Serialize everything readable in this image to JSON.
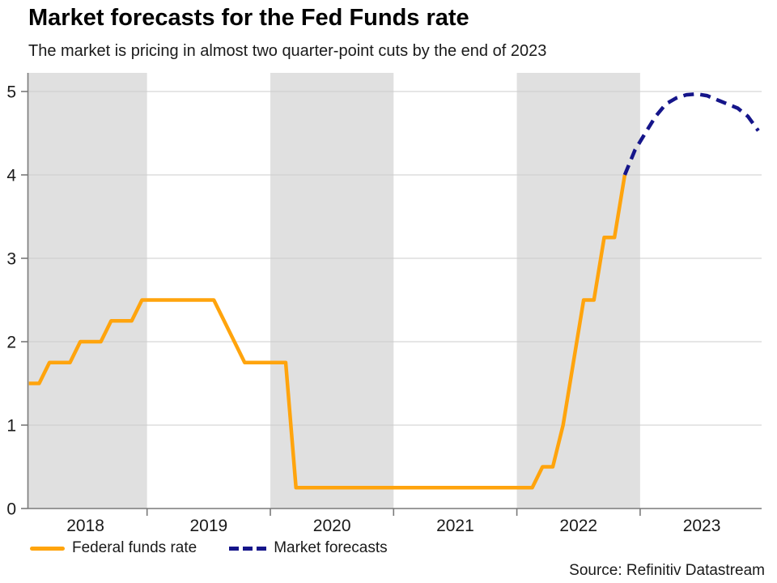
{
  "header": {
    "title": "Market forecasts for the Fed Funds rate",
    "subtitle": "The market is pricing in almost two quarter-point cuts by the end of 2023"
  },
  "chart_data": {
    "type": "line",
    "title": "Market forecasts for the Fed Funds rate",
    "subtitle": "The market is pricing in almost two quarter-point cuts by the end of 2023",
    "xlabel": "",
    "ylabel": "",
    "ylim": [
      0,
      5.2
    ],
    "y_ticks": [
      0,
      1,
      2,
      3,
      4,
      5
    ],
    "x_tick_year_labels": [
      "2018",
      "2019",
      "2020",
      "2021",
      "2022",
      "2023"
    ],
    "shaded_year_bands": [
      2018,
      2020,
      2022
    ],
    "grid": "horizontal gridlines at integer y values",
    "legend_position": "bottom-left",
    "series": [
      {
        "name": "Federal funds rate",
        "style": "solid",
        "color": "#FFA40D",
        "points": [
          [
            "2018-01",
            1.5
          ],
          [
            "2018-02",
            1.5
          ],
          [
            "2018-03",
            1.75
          ],
          [
            "2018-04",
            1.75
          ],
          [
            "2018-05",
            1.75
          ],
          [
            "2018-06",
            2.0
          ],
          [
            "2018-07",
            2.0
          ],
          [
            "2018-08",
            2.0
          ],
          [
            "2018-09",
            2.25
          ],
          [
            "2018-10",
            2.25
          ],
          [
            "2018-11",
            2.25
          ],
          [
            "2018-12",
            2.5
          ],
          [
            "2019-01",
            2.5
          ],
          [
            "2019-02",
            2.5
          ],
          [
            "2019-03",
            2.5
          ],
          [
            "2019-04",
            2.5
          ],
          [
            "2019-05",
            2.5
          ],
          [
            "2019-06",
            2.5
          ],
          [
            "2019-07",
            2.5
          ],
          [
            "2019-08",
            2.25
          ],
          [
            "2019-09",
            2.0
          ],
          [
            "2019-10",
            1.75
          ],
          [
            "2019-11",
            1.75
          ],
          [
            "2019-12",
            1.75
          ],
          [
            "2020-01",
            1.75
          ],
          [
            "2020-02",
            1.75
          ],
          [
            "2020-03",
            0.25
          ],
          [
            "2020-04",
            0.25
          ],
          [
            "2020-05",
            0.25
          ],
          [
            "2020-06",
            0.25
          ],
          [
            "2020-07",
            0.25
          ],
          [
            "2020-08",
            0.25
          ],
          [
            "2020-09",
            0.25
          ],
          [
            "2020-10",
            0.25
          ],
          [
            "2020-11",
            0.25
          ],
          [
            "2020-12",
            0.25
          ],
          [
            "2021-01",
            0.25
          ],
          [
            "2021-02",
            0.25
          ],
          [
            "2021-03",
            0.25
          ],
          [
            "2021-04",
            0.25
          ],
          [
            "2021-05",
            0.25
          ],
          [
            "2021-06",
            0.25
          ],
          [
            "2021-07",
            0.25
          ],
          [
            "2021-08",
            0.25
          ],
          [
            "2021-09",
            0.25
          ],
          [
            "2021-10",
            0.25
          ],
          [
            "2021-11",
            0.25
          ],
          [
            "2021-12",
            0.25
          ],
          [
            "2022-01",
            0.25
          ],
          [
            "2022-02",
            0.25
          ],
          [
            "2022-03",
            0.5
          ],
          [
            "2022-04",
            0.5
          ],
          [
            "2022-05",
            1.0
          ],
          [
            "2022-06",
            1.75
          ],
          [
            "2022-07",
            2.5
          ],
          [
            "2022-08",
            2.5
          ],
          [
            "2022-09",
            3.25
          ],
          [
            "2022-10",
            3.25
          ],
          [
            "2022-11",
            4.0
          ]
        ]
      },
      {
        "name": "Market forecasts",
        "style": "dashed",
        "color": "#15158A",
        "points": [
          [
            "2022-11",
            4.0
          ],
          [
            "2022-12",
            4.3
          ],
          [
            "2023-01",
            4.5
          ],
          [
            "2023-02",
            4.7
          ],
          [
            "2023-03",
            4.85
          ],
          [
            "2023-04",
            4.92
          ],
          [
            "2023-05",
            4.96
          ],
          [
            "2023-06",
            4.97
          ],
          [
            "2023-07",
            4.95
          ],
          [
            "2023-08",
            4.9
          ],
          [
            "2023-09",
            4.85
          ],
          [
            "2023-10",
            4.8
          ],
          [
            "2023-11",
            4.7
          ],
          [
            "2023-12",
            4.53
          ]
        ]
      }
    ]
  },
  "legend": {
    "items": [
      {
        "label": "Federal funds rate",
        "style": "solid",
        "color": "#FFA40D"
      },
      {
        "label": "Market forecasts",
        "style": "dashed",
        "color": "#15158A"
      }
    ]
  },
  "source": "Source: Refinitiv Datastream",
  "colors": {
    "actual_line": "#FFA40D",
    "forecast_line": "#15158A",
    "shaded_band": "#E0E0E0",
    "gridline": "#CDCDCD",
    "axis": "#7A7A7A",
    "tick_label": "#1A1A1A"
  }
}
